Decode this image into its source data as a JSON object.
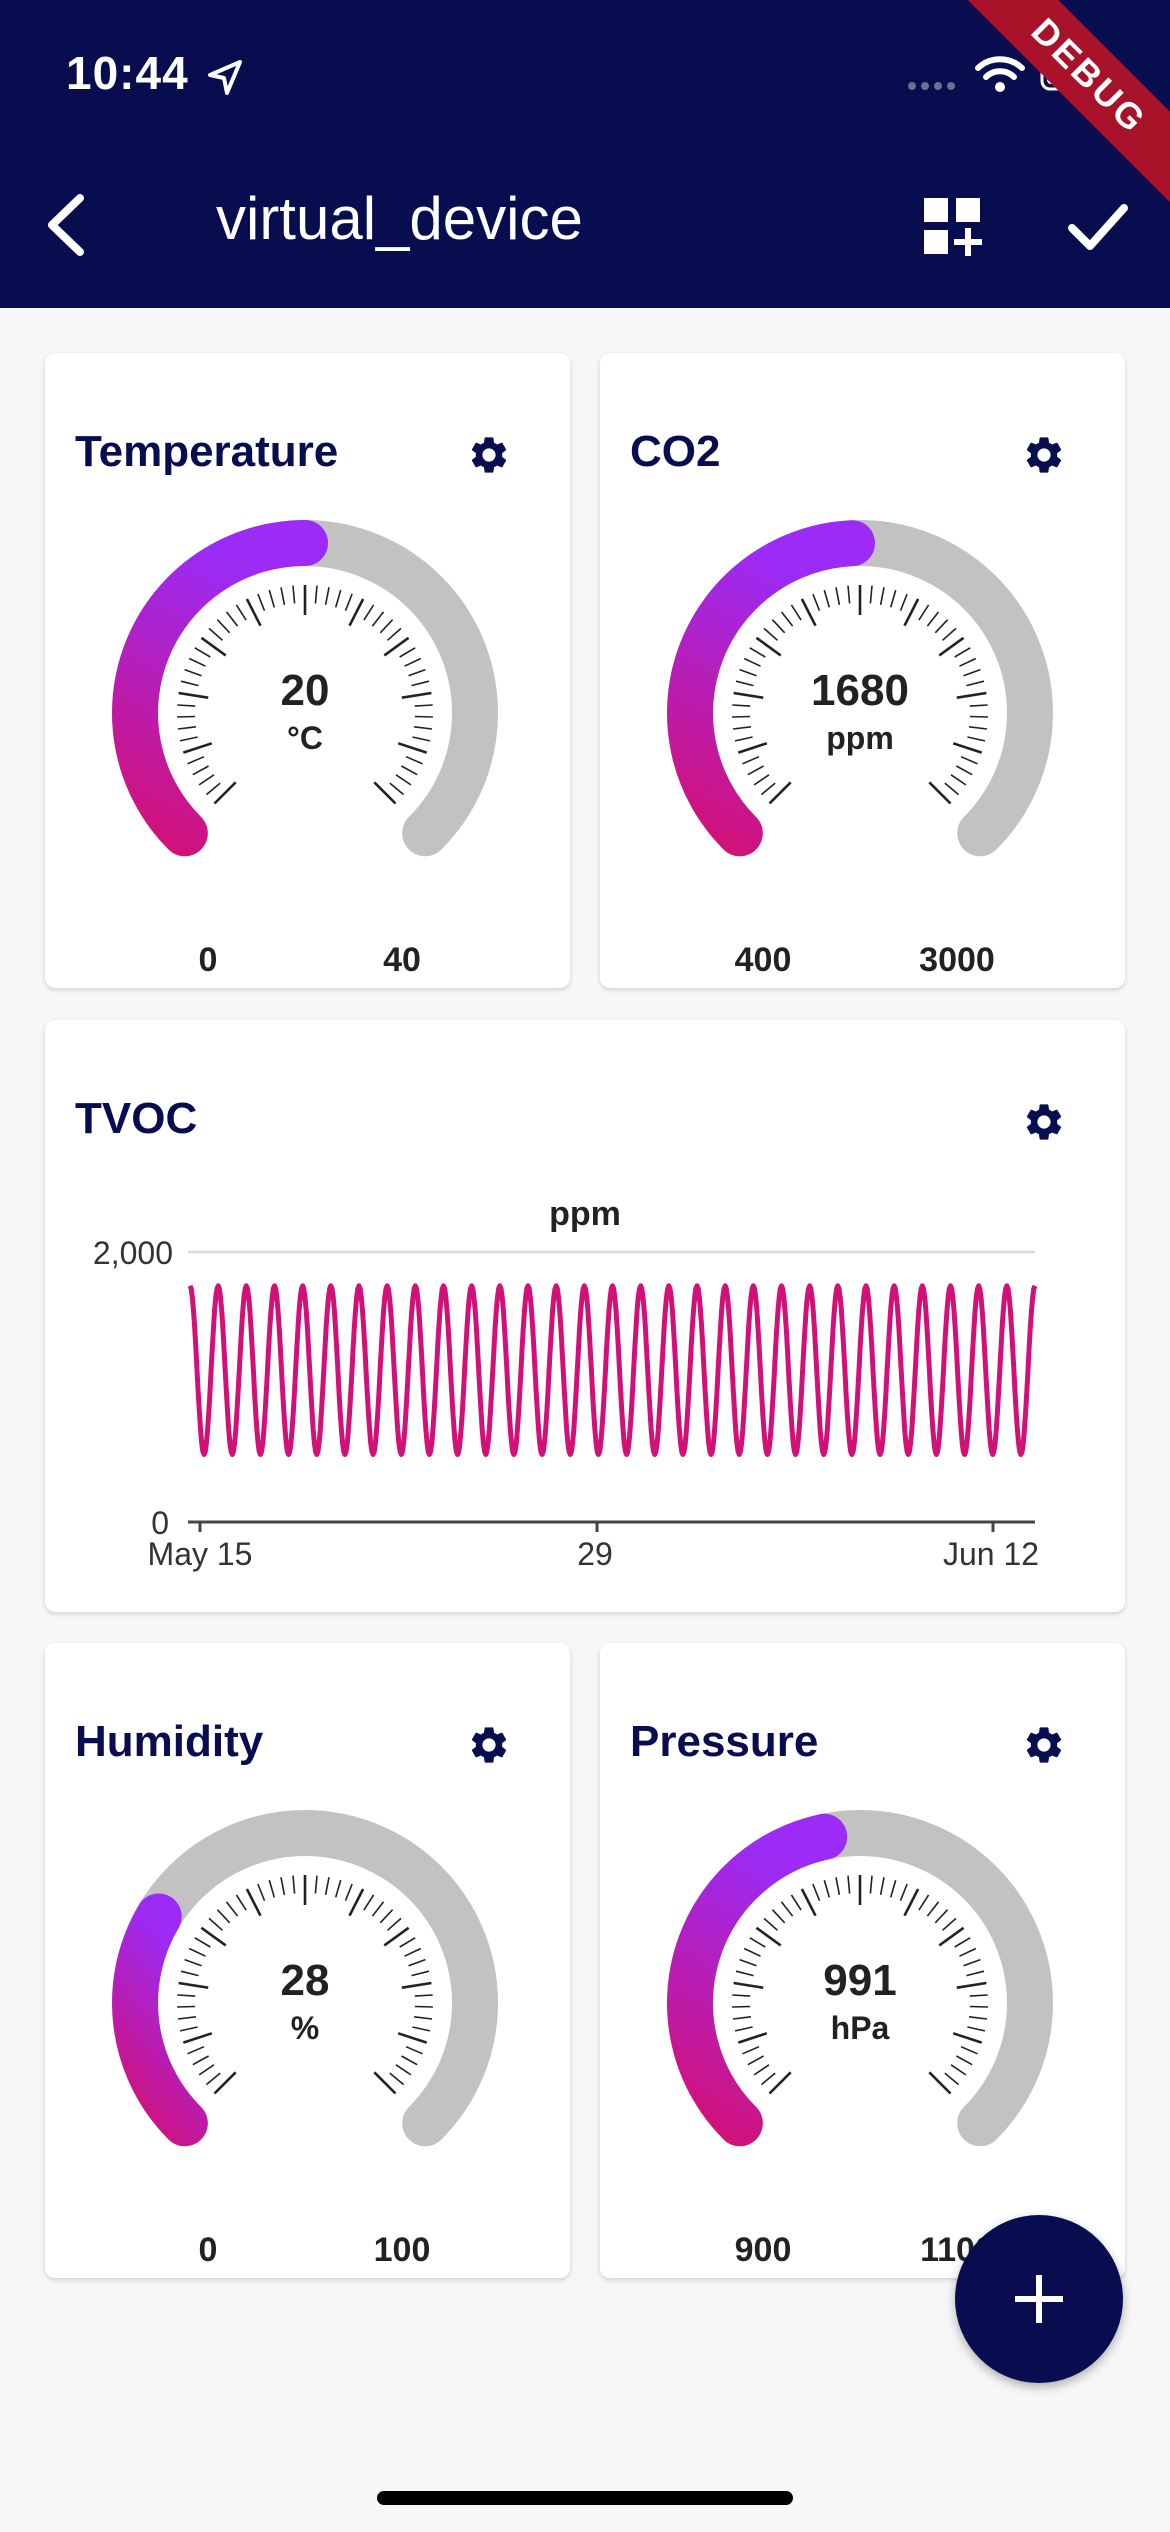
{
  "status_bar": {
    "time": "10:44",
    "debug_label": "DEBUG"
  },
  "header": {
    "title": "virtual_device"
  },
  "colors": {
    "brand": "#070d4f",
    "gauge_start": "#d21178",
    "gauge_end": "#9b2bf5",
    "track": "#c2c2c2",
    "line": "#d21178",
    "debug": "#a8132a"
  },
  "icons": [
    "location-arrow-icon",
    "cellular-signal-icon",
    "wifi-icon",
    "battery-icon",
    "back-arrow-icon",
    "add-widget-icon",
    "checkmark-icon",
    "gear-icon",
    "plus-icon"
  ],
  "widgets": {
    "temperature": {
      "title": "Temperature",
      "value": "20",
      "unit": "°C",
      "min": "0",
      "max": "40",
      "fraction": 0.5
    },
    "co2": {
      "title": "CO2",
      "value": "1680",
      "unit": "ppm",
      "min": "400",
      "max": "3000",
      "fraction": 0.49
    },
    "tvoc": {
      "title": "TVOC"
    },
    "humidity": {
      "title": "Humidity",
      "value": "28",
      "unit": "%",
      "min": "0",
      "max": "100",
      "fraction": 0.28
    },
    "pressure": {
      "title": "Pressure",
      "value": "991",
      "unit": "hPa",
      "min": "900",
      "max": "1100",
      "fraction": 0.455
    }
  },
  "chart_data": {
    "type": "line",
    "title": "ppm",
    "xlabel": "",
    "ylabel": "",
    "x_tick_labels": [
      "May 15",
      "29",
      "Jun 12"
    ],
    "y_tick_labels": [
      "2,000",
      "0"
    ],
    "ylim": [
      0,
      2000
    ],
    "xlim": [
      "May 15",
      "Jun 12"
    ],
    "grid": true,
    "series": [
      {
        "pattern": "oscillating",
        "min": 500,
        "max": 1750,
        "cycles": 30
      }
    ]
  }
}
